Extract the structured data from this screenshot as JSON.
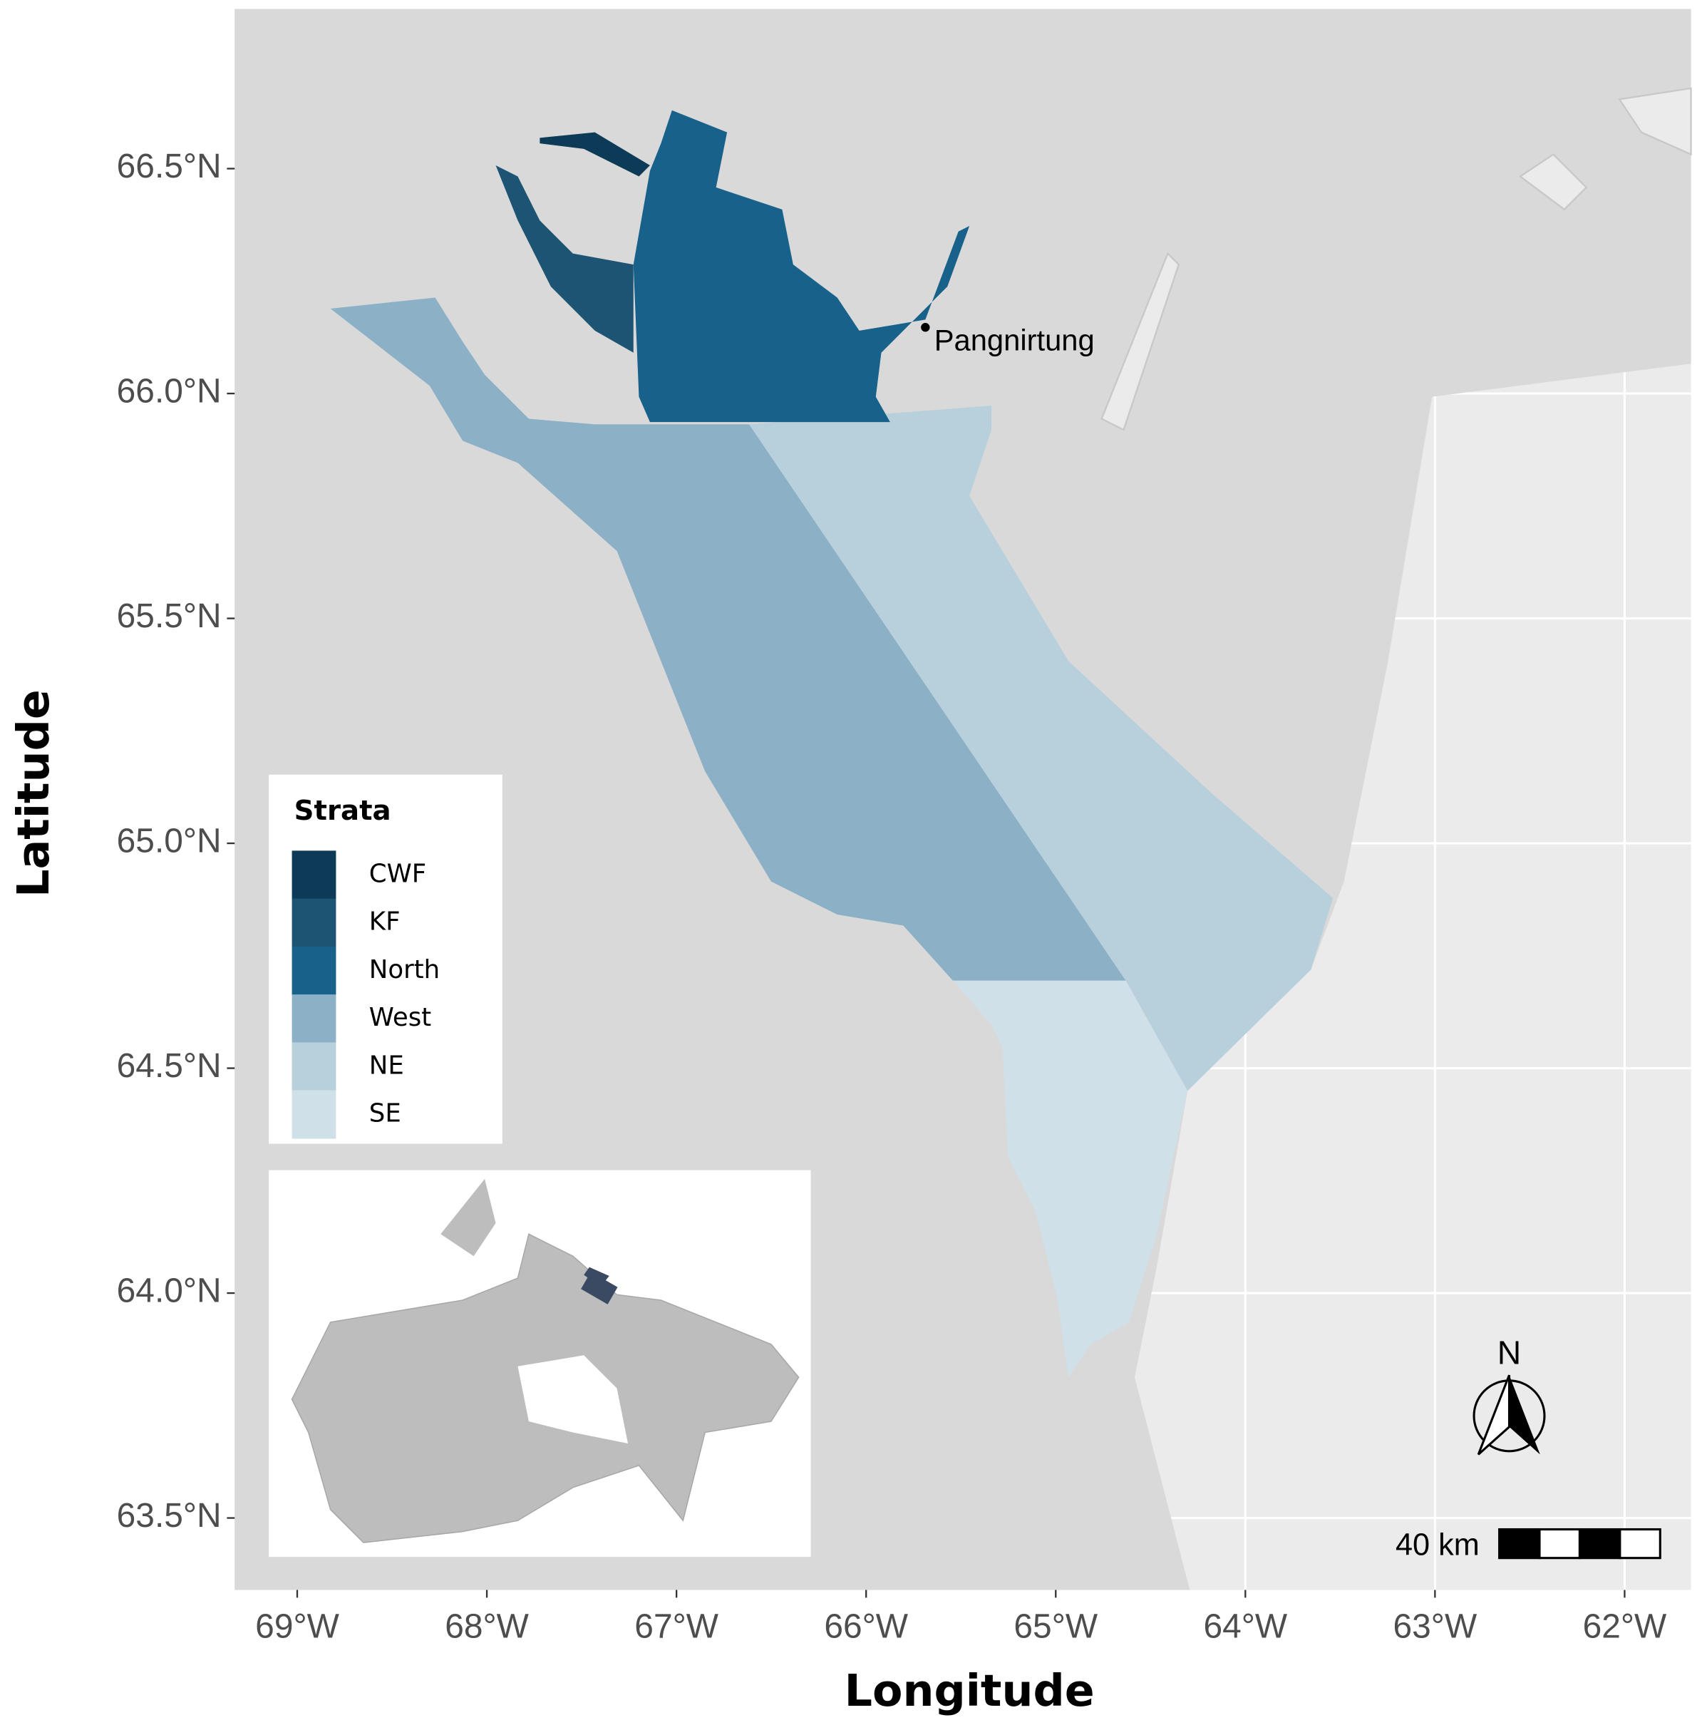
{
  "map": {
    "xlabel": "Longitude",
    "ylabel": "Latitude",
    "xlim": [
      -69.33,
      -61.65
    ],
    "ylim": [
      63.34,
      66.855
    ],
    "xticks": [
      {
        "value": -69,
        "label": "69°W"
      },
      {
        "value": -68,
        "label": "68°W"
      },
      {
        "value": -67,
        "label": "67°W"
      },
      {
        "value": -66,
        "label": "66°W"
      },
      {
        "value": -65,
        "label": "65°W"
      },
      {
        "value": -64,
        "label": "64°W"
      },
      {
        "value": -63,
        "label": "63°W"
      },
      {
        "value": -62,
        "label": "62°W"
      }
    ],
    "yticks": [
      {
        "value": 63.5,
        "label": "63.5°N"
      },
      {
        "value": 64,
        "label": "64.0°N"
      },
      {
        "value": 64.5,
        "label": "64.5°N"
      },
      {
        "value": 65,
        "label": "65.0°N"
      },
      {
        "value": 65.5,
        "label": "65.5°N"
      },
      {
        "value": 66,
        "label": "66.0°N"
      },
      {
        "value": 66.5,
        "label": "66.5°N"
      }
    ],
    "legend_title": "Strata",
    "strata": [
      {
        "name": "CWF",
        "color": "#0d3a57"
      },
      {
        "name": "KF",
        "color": "#1d5473"
      },
      {
        "name": "North",
        "color": "#17618b"
      },
      {
        "name": "West",
        "color": "#8cb0c6"
      },
      {
        "name": "NE",
        "color": "#b8d0dc"
      },
      {
        "name": "SE",
        "color": "#d0e0e8"
      }
    ],
    "place_label": "Pangnirtung",
    "north_label": "N",
    "scale_label": "40 km"
  }
}
